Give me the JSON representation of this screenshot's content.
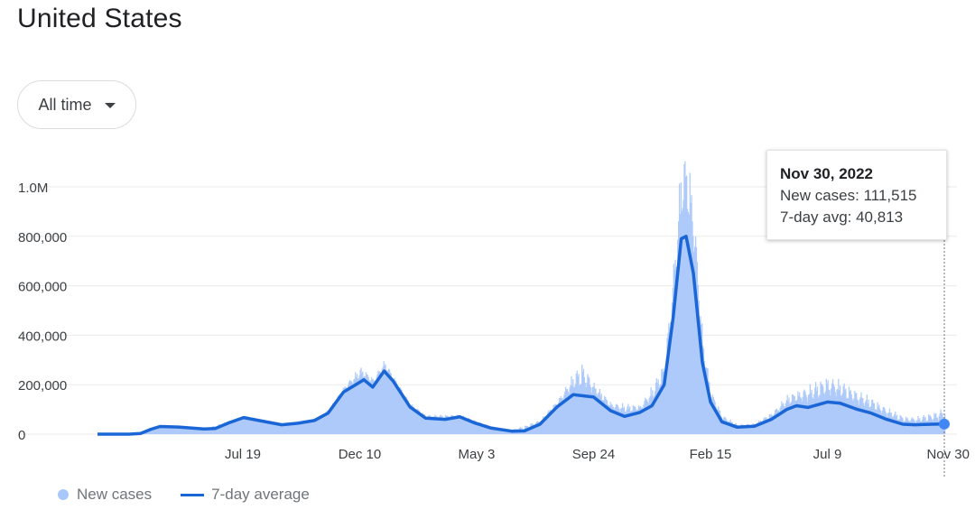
{
  "title": "United States",
  "range_selector": {
    "label": "All time",
    "icon": "caret-down-icon"
  },
  "tooltip": {
    "date": "Nov 30, 2022",
    "new_cases_text": "New cases: 111,515",
    "avg_text": "7-day avg: 40,813"
  },
  "legend": {
    "new_cases": "New cases",
    "avg": "7-day average"
  },
  "colors": {
    "bars": "#a8c7fa",
    "line": "#1a66d6",
    "grid": "#ebebeb",
    "axis_text": "#3c4043"
  },
  "chart_data": {
    "type": "bar",
    "title": "",
    "xlabel": "",
    "ylabel": "",
    "ylim": [
      0,
      1150000
    ],
    "y_ticks": [
      {
        "value": 0,
        "label": "0"
      },
      {
        "value": 200000,
        "label": "200,000"
      },
      {
        "value": 400000,
        "label": "400,000"
      },
      {
        "value": 600000,
        "label": "600,000"
      },
      {
        "value": 800000,
        "label": "800,000"
      },
      {
        "value": 1000000,
        "label": "1.0M"
      }
    ],
    "x_range": [
      "2020-01-22",
      "2022-11-30"
    ],
    "x_ticks": [
      {
        "date": "2020-07-19",
        "label": "Jul 19"
      },
      {
        "date": "2020-12-10",
        "label": "Dec 10"
      },
      {
        "date": "2021-05-03",
        "label": "May 3"
      },
      {
        "date": "2021-09-24",
        "label": "Sep 24"
      },
      {
        "date": "2022-02-15",
        "label": "Feb 15"
      },
      {
        "date": "2022-07-09",
        "label": "Jul 9"
      },
      {
        "date": "2022-11-30",
        "label": "Nov 30"
      }
    ],
    "grid": true,
    "legend_position": "bottom-left",
    "series": [
      {
        "name": "7-day average",
        "type": "line",
        "points": [
          [
            "2020-01-22",
            0
          ],
          [
            "2020-03-01",
            0
          ],
          [
            "2020-03-15",
            3000
          ],
          [
            "2020-03-28",
            20000
          ],
          [
            "2020-04-08",
            31000
          ],
          [
            "2020-05-01",
            29000
          ],
          [
            "2020-06-01",
            21000
          ],
          [
            "2020-06-15",
            23000
          ],
          [
            "2020-07-01",
            45000
          ],
          [
            "2020-07-20",
            67000
          ],
          [
            "2020-08-05",
            57000
          ],
          [
            "2020-09-05",
            38000
          ],
          [
            "2020-09-25",
            44000
          ],
          [
            "2020-10-15",
            55000
          ],
          [
            "2020-11-01",
            85000
          ],
          [
            "2020-11-20",
            170000
          ],
          [
            "2020-12-05",
            200000
          ],
          [
            "2020-12-15",
            220000
          ],
          [
            "2020-12-26",
            190000
          ],
          [
            "2021-01-09",
            255000
          ],
          [
            "2021-01-20",
            215000
          ],
          [
            "2021-02-10",
            110000
          ],
          [
            "2021-03-01",
            65000
          ],
          [
            "2021-03-25",
            60000
          ],
          [
            "2021-04-12",
            70000
          ],
          [
            "2021-05-01",
            45000
          ],
          [
            "2021-05-20",
            25000
          ],
          [
            "2021-06-15",
            12000
          ],
          [
            "2021-07-01",
            13000
          ],
          [
            "2021-07-20",
            40000
          ],
          [
            "2021-08-10",
            110000
          ],
          [
            "2021-08-30",
            160000
          ],
          [
            "2021-09-24",
            150000
          ],
          [
            "2021-10-15",
            95000
          ],
          [
            "2021-11-01",
            72000
          ],
          [
            "2021-11-20",
            88000
          ],
          [
            "2021-12-05",
            115000
          ],
          [
            "2021-12-20",
            200000
          ],
          [
            "2021-12-31",
            470000
          ],
          [
            "2022-01-10",
            790000
          ],
          [
            "2022-01-16",
            800000
          ],
          [
            "2022-01-25",
            650000
          ],
          [
            "2022-02-05",
            290000
          ],
          [
            "2022-02-15",
            130000
          ],
          [
            "2022-03-01",
            50000
          ],
          [
            "2022-03-20",
            28000
          ],
          [
            "2022-04-10",
            32000
          ],
          [
            "2022-05-01",
            60000
          ],
          [
            "2022-05-20",
            100000
          ],
          [
            "2022-06-01",
            115000
          ],
          [
            "2022-06-15",
            108000
          ],
          [
            "2022-07-09",
            130000
          ],
          [
            "2022-07-25",
            125000
          ],
          [
            "2022-08-15",
            100000
          ],
          [
            "2022-09-01",
            85000
          ],
          [
            "2022-09-20",
            60000
          ],
          [
            "2022-10-10",
            40000
          ],
          [
            "2022-10-25",
            38000
          ],
          [
            "2022-11-15",
            40000
          ],
          [
            "2022-11-30",
            40813
          ]
        ]
      },
      {
        "name": "New cases",
        "type": "bar",
        "note_points_are_envelope": true,
        "points": [
          [
            "2020-01-22",
            0
          ],
          [
            "2020-03-15",
            5000
          ],
          [
            "2020-04-08",
            36000
          ],
          [
            "2020-05-01",
            31000
          ],
          [
            "2020-06-01",
            24000
          ],
          [
            "2020-07-01",
            52000
          ],
          [
            "2020-07-20",
            75000
          ],
          [
            "2020-08-05",
            62000
          ],
          [
            "2020-09-05",
            42000
          ],
          [
            "2020-10-15",
            62000
          ],
          [
            "2020-11-01",
            100000
          ],
          [
            "2020-11-20",
            195000
          ],
          [
            "2020-12-10",
            275000
          ],
          [
            "2020-12-26",
            230000
          ],
          [
            "2021-01-09",
            300000
          ],
          [
            "2021-01-20",
            235000
          ],
          [
            "2021-02-10",
            125000
          ],
          [
            "2021-03-01",
            78000
          ],
          [
            "2021-04-12",
            80000
          ],
          [
            "2021-05-20",
            32000
          ],
          [
            "2021-06-15",
            18000
          ],
          [
            "2021-07-20",
            60000
          ],
          [
            "2021-08-10",
            140000
          ],
          [
            "2021-08-30",
            250000
          ],
          [
            "2021-09-10",
            300000
          ],
          [
            "2021-09-24",
            210000
          ],
          [
            "2021-10-15",
            130000
          ],
          [
            "2021-11-20",
            120000
          ],
          [
            "2021-12-05",
            200000
          ],
          [
            "2021-12-20",
            300000
          ],
          [
            "2021-12-31",
            700000
          ],
          [
            "2022-01-10",
            1150000
          ],
          [
            "2022-01-18",
            1150000
          ],
          [
            "2022-01-25",
            950000
          ],
          [
            "2022-02-05",
            400000
          ],
          [
            "2022-02-15",
            180000
          ],
          [
            "2022-03-01",
            80000
          ],
          [
            "2022-03-20",
            40000
          ],
          [
            "2022-04-10",
            45000
          ],
          [
            "2022-05-01",
            90000
          ],
          [
            "2022-05-20",
            160000
          ],
          [
            "2022-06-15",
            200000
          ],
          [
            "2022-07-09",
            240000
          ],
          [
            "2022-07-25",
            220000
          ],
          [
            "2022-08-15",
            180000
          ],
          [
            "2022-09-01",
            150000
          ],
          [
            "2022-09-20",
            110000
          ],
          [
            "2022-10-10",
            75000
          ],
          [
            "2022-10-25",
            70000
          ],
          [
            "2022-11-15",
            90000
          ],
          [
            "2022-11-30",
            111515
          ]
        ]
      }
    ],
    "highlight": {
      "date": "2022-11-30",
      "value": 40813
    }
  }
}
